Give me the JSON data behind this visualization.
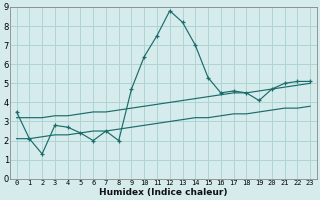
{
  "xlabel": "Humidex (Indice chaleur)",
  "bg_color": "#d6ecec",
  "grid_color": "#afd4d4",
  "line_color": "#1a6b6b",
  "xlim": [
    -0.5,
    23.5
  ],
  "ylim": [
    0,
    9
  ],
  "xticks": [
    0,
    1,
    2,
    3,
    4,
    5,
    6,
    7,
    8,
    9,
    10,
    11,
    12,
    13,
    14,
    15,
    16,
    17,
    18,
    19,
    20,
    21,
    22,
    23
  ],
  "yticks": [
    0,
    1,
    2,
    3,
    4,
    5,
    6,
    7,
    8,
    9
  ],
  "main_x": [
    0,
    1,
    2,
    3,
    4,
    5,
    6,
    7,
    8,
    9,
    10,
    11,
    12,
    13,
    14,
    15,
    16,
    17,
    18,
    19,
    20,
    21,
    22,
    23
  ],
  "main_y": [
    3.5,
    2.1,
    1.3,
    2.8,
    2.7,
    2.4,
    2.0,
    2.5,
    2.0,
    4.7,
    6.4,
    7.5,
    8.8,
    8.2,
    7.0,
    5.3,
    4.5,
    4.6,
    4.5,
    4.1,
    4.7,
    5.0,
    5.1,
    5.1
  ],
  "upper_x": [
    0,
    1,
    2,
    3,
    4,
    5,
    6,
    7,
    8,
    9,
    10,
    11,
    12,
    13,
    14,
    15,
    16,
    17,
    18,
    19,
    20,
    21,
    22,
    23
  ],
  "upper_y": [
    3.2,
    3.2,
    3.2,
    3.3,
    3.3,
    3.4,
    3.5,
    3.5,
    3.6,
    3.7,
    3.8,
    3.9,
    4.0,
    4.1,
    4.2,
    4.3,
    4.4,
    4.5,
    4.5,
    4.6,
    4.7,
    4.8,
    4.9,
    5.0
  ],
  "lower_x": [
    0,
    1,
    2,
    3,
    4,
    5,
    6,
    7,
    8,
    9,
    10,
    11,
    12,
    13,
    14,
    15,
    16,
    17,
    18,
    19,
    20,
    21,
    22,
    23
  ],
  "lower_y": [
    2.1,
    2.1,
    2.2,
    2.3,
    2.3,
    2.4,
    2.5,
    2.5,
    2.6,
    2.7,
    2.8,
    2.9,
    3.0,
    3.1,
    3.2,
    3.2,
    3.3,
    3.4,
    3.4,
    3.5,
    3.6,
    3.7,
    3.7,
    3.8
  ]
}
